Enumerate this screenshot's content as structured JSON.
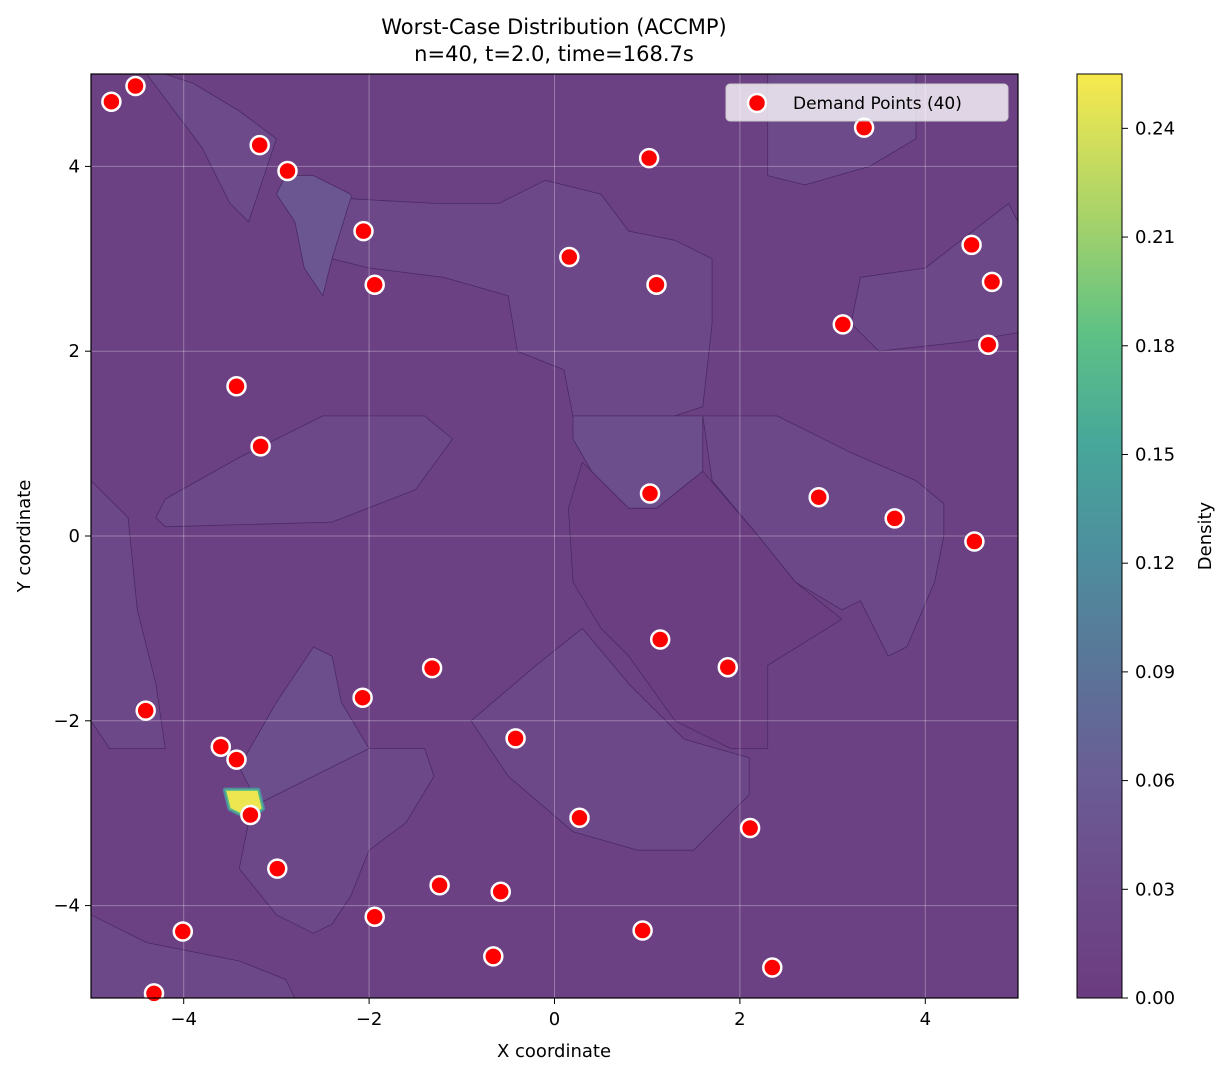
{
  "chart_data": {
    "type": "scatter",
    "title": "Worst-Case Distribution (ACCMP)",
    "subtitle": "n=40, t=2.0, time=168.7s",
    "xlabel": "X coordinate",
    "ylabel": "Y coordinate",
    "xlim": [
      -5,
      5
    ],
    "ylim": [
      -5,
      5
    ],
    "x_ticks": [
      -4,
      -2,
      0,
      2,
      4
    ],
    "y_ticks": [
      -4,
      -2,
      0,
      2,
      4
    ],
    "x_tick_labels": [
      "−4",
      "−2",
      "0",
      "2",
      "4"
    ],
    "y_tick_labels": [
      "−4",
      "−2",
      "0",
      "2",
      "4"
    ],
    "grid": true,
    "legend_placement": "top-right",
    "colormap": "viridis",
    "colorbar": {
      "label": "Density",
      "range": [
        0.0,
        0.255
      ],
      "ticks": [
        0.0,
        0.03,
        0.06,
        0.09,
        0.12,
        0.15,
        0.18,
        0.21,
        0.24
      ],
      "tick_labels": [
        "0.00",
        "0.03",
        "0.06",
        "0.09",
        "0.12",
        "0.15",
        "0.18",
        "0.21",
        "0.24"
      ]
    },
    "background_density": {
      "base": 0.01,
      "regions": [
        {
          "level": 0.03,
          "polygon": [
            [
              -5,
              5
            ],
            [
              -4.4,
              5
            ],
            [
              -3.8,
              4.2
            ],
            [
              -3.5,
              3.6
            ],
            [
              -3.3,
              3.4
            ],
            [
              -3.2,
              3.7
            ],
            [
              -3.0,
              4.3
            ],
            [
              -3.4,
              4.6
            ],
            [
              -3.9,
              4.9
            ],
            [
              -4.2,
              5
            ]
          ]
        },
        {
          "level": 0.05,
          "polygon": [
            [
              -2.9,
              3.9
            ],
            [
              -2.6,
              3.9
            ],
            [
              -2.2,
              3.7
            ],
            [
              -2.1,
              3.4
            ],
            [
              -2.4,
              3.0
            ],
            [
              -2.5,
              2.6
            ],
            [
              -2.7,
              2.9
            ],
            [
              -2.8,
              3.4
            ],
            [
              -3.0,
              3.7
            ]
          ]
        },
        {
          "level": 0.025,
          "polygon": [
            [
              -2.2,
              3.65
            ],
            [
              -1.3,
              3.6
            ],
            [
              -0.6,
              3.6
            ],
            [
              -0.1,
              3.85
            ],
            [
              0.5,
              3.7
            ],
            [
              0.8,
              3.3
            ],
            [
              1.3,
              3.2
            ],
            [
              1.7,
              3.0
            ],
            [
              1.7,
              2.3
            ],
            [
              1.6,
              1.4
            ],
            [
              1.3,
              1.3
            ],
            [
              0.2,
              1.3
            ],
            [
              0.1,
              1.8
            ],
            [
              -0.4,
              2.0
            ],
            [
              -0.5,
              2.6
            ],
            [
              -1.2,
              2.8
            ],
            [
              -2.0,
              2.9
            ],
            [
              -2.4,
              3.0
            ]
          ]
        },
        {
          "level": 0.03,
          "polygon": [
            [
              2.3,
              5
            ],
            [
              3.9,
              5
            ],
            [
              3.9,
              4.3
            ],
            [
              3.4,
              4.0
            ],
            [
              2.7,
              3.8
            ],
            [
              2.3,
              3.9
            ],
            [
              2.3,
              4.5
            ]
          ]
        },
        {
          "level": 0.025,
          "polygon": [
            [
              3.3,
              2.8
            ],
            [
              4.0,
              2.9
            ],
            [
              4.9,
              3.6
            ],
            [
              5,
              3.4
            ],
            [
              5,
              2.2
            ],
            [
              4.4,
              2.1
            ],
            [
              3.5,
              2.0
            ],
            [
              3.2,
              2.3
            ]
          ]
        },
        {
          "level": 0.025,
          "polygon": [
            [
              -4.2,
              0.4
            ],
            [
              -3.4,
              0.85
            ],
            [
              -2.5,
              1.3
            ],
            [
              -1.4,
              1.3
            ],
            [
              -1.1,
              1.05
            ],
            [
              -1.5,
              0.5
            ],
            [
              -2.4,
              0.15
            ],
            [
              -4.2,
              0.1
            ],
            [
              -4.3,
              0.2
            ]
          ]
        },
        {
          "level": 0.035,
          "polygon": [
            [
              0.2,
              1.3
            ],
            [
              1.6,
              1.3
            ],
            [
              1.6,
              0.7
            ],
            [
              1.1,
              0.3
            ],
            [
              0.8,
              0.3
            ],
            [
              0.4,
              0.7
            ],
            [
              0.2,
              1.05
            ]
          ]
        },
        {
          "level": 0.025,
          "polygon": [
            [
              1.6,
              1.3
            ],
            [
              2.4,
              1.3
            ],
            [
              3.2,
              0.9
            ],
            [
              3.9,
              0.6
            ],
            [
              4.2,
              0.35
            ],
            [
              4.2,
              0.0
            ],
            [
              4.1,
              -0.5
            ],
            [
              3.8,
              -1.2
            ],
            [
              3.6,
              -1.3
            ],
            [
              3.3,
              -0.7
            ],
            [
              3.1,
              -0.8
            ],
            [
              2.6,
              -0.5
            ],
            [
              2.2,
              0.0
            ],
            [
              1.7,
              0.6
            ]
          ]
        },
        {
          "level": 0.005,
          "polygon": [
            [
              0.3,
              0.8
            ],
            [
              0.8,
              0.3
            ],
            [
              1.1,
              0.3
            ],
            [
              1.6,
              0.7
            ],
            [
              2.2,
              0.0
            ],
            [
              2.6,
              -0.5
            ],
            [
              3.1,
              -0.9
            ],
            [
              2.3,
              -1.4
            ],
            [
              2.3,
              -2.3
            ],
            [
              1.9,
              -2.3
            ],
            [
              1.3,
              -2.0
            ],
            [
              0.8,
              -1.3
            ],
            [
              0.5,
              -1.0
            ],
            [
              0.2,
              -0.5
            ],
            [
              0.15,
              0.3
            ]
          ]
        },
        {
          "level": 0.025,
          "polygon": [
            [
              -5,
              0.6
            ],
            [
              -4.6,
              0.2
            ],
            [
              -4.5,
              -0.8
            ],
            [
              -4.3,
              -1.6
            ],
            [
              -4.2,
              -2.3
            ],
            [
              -4.8,
              -2.3
            ],
            [
              -5,
              -2.0
            ]
          ]
        },
        {
          "level": 0.035,
          "polygon": [
            [
              -3.4,
              -2.5
            ],
            [
              -3.0,
              -1.8
            ],
            [
              -2.6,
              -1.2
            ],
            [
              -2.4,
              -1.3
            ],
            [
              -2.3,
              -1.8
            ],
            [
              -2.0,
              -2.3
            ],
            [
              -2.5,
              -2.7
            ],
            [
              -3.0,
              -3.1
            ],
            [
              -3.2,
              -2.9
            ]
          ]
        },
        {
          "level": 0.025,
          "polygon": [
            [
              -3.2,
              -2.9
            ],
            [
              -2.0,
              -2.3
            ],
            [
              -1.4,
              -2.3
            ],
            [
              -1.3,
              -2.6
            ],
            [
              -1.6,
              -3.1
            ],
            [
              -2.0,
              -3.4
            ],
            [
              -2.2,
              -3.9
            ],
            [
              -2.4,
              -4.2
            ],
            [
              -2.6,
              -4.3
            ],
            [
              -3.0,
              -4.1
            ],
            [
              -3.4,
              -3.6
            ],
            [
              -3.3,
              -3.1
            ]
          ]
        },
        {
          "level": 0.025,
          "polygon": [
            [
              -0.9,
              -2.0
            ],
            [
              -0.2,
              -1.4
            ],
            [
              0.3,
              -1.0
            ],
            [
              0.8,
              -1.6
            ],
            [
              1.4,
              -2.2
            ],
            [
              2.1,
              -2.4
            ],
            [
              2.1,
              -2.8
            ],
            [
              1.7,
              -3.2
            ],
            [
              1.5,
              -3.4
            ],
            [
              0.9,
              -3.4
            ],
            [
              0.2,
              -3.2
            ],
            [
              -0.5,
              -2.6
            ]
          ]
        },
        {
          "level": 0.025,
          "polygon": [
            [
              -5,
              -4.1
            ],
            [
              -4.4,
              -4.4
            ],
            [
              -3.4,
              -4.6
            ],
            [
              -2.9,
              -4.8
            ],
            [
              -2.8,
              -5
            ],
            [
              -5,
              -5
            ]
          ]
        }
      ],
      "hotspot": {
        "level": 0.25,
        "polygon": [
          [
            -3.55,
            -2.75
          ],
          [
            -3.2,
            -2.75
          ],
          [
            -3.15,
            -2.95
          ],
          [
            -3.3,
            -3.05
          ],
          [
            -3.5,
            -2.95
          ]
        ]
      }
    },
    "series": [
      {
        "name": "Demand Points (40)",
        "marker": "circle",
        "color": "#ff0000",
        "edgecolor": "#ffffff",
        "points": [
          [
            -4.78,
            4.7
          ],
          [
            -4.52,
            4.87
          ],
          [
            -3.18,
            4.23
          ],
          [
            -2.88,
            3.95
          ],
          [
            -2.06,
            3.3
          ],
          [
            -1.94,
            2.72
          ],
          [
            0.16,
            3.02
          ],
          [
            1.02,
            4.09
          ],
          [
            1.1,
            2.72
          ],
          [
            3.34,
            4.42
          ],
          [
            4.5,
            3.15
          ],
          [
            4.72,
            2.75
          ],
          [
            3.11,
            2.29
          ],
          [
            4.68,
            2.07
          ],
          [
            -3.43,
            1.62
          ],
          [
            -3.17,
            0.97
          ],
          [
            1.03,
            0.46
          ],
          [
            2.85,
            0.42
          ],
          [
            3.67,
            0.19
          ],
          [
            4.53,
            -0.06
          ],
          [
            1.14,
            -1.12
          ],
          [
            1.87,
            -1.42
          ],
          [
            -1.32,
            -1.43
          ],
          [
            -2.07,
            -1.75
          ],
          [
            -4.41,
            -1.89
          ],
          [
            -3.6,
            -2.28
          ],
          [
            -3.43,
            -2.42
          ],
          [
            -0.42,
            -2.19
          ],
          [
            -3.28,
            -3.02
          ],
          [
            0.27,
            -3.05
          ],
          [
            2.11,
            -3.16
          ],
          [
            -2.99,
            -3.6
          ],
          [
            -1.24,
            -3.78
          ],
          [
            -0.58,
            -3.85
          ],
          [
            -1.94,
            -4.12
          ],
          [
            -4.01,
            -4.28
          ],
          [
            0.95,
            -4.27
          ],
          [
            -0.66,
            -4.55
          ],
          [
            2.35,
            -4.67
          ],
          [
            -4.32,
            -4.95
          ]
        ]
      }
    ]
  }
}
